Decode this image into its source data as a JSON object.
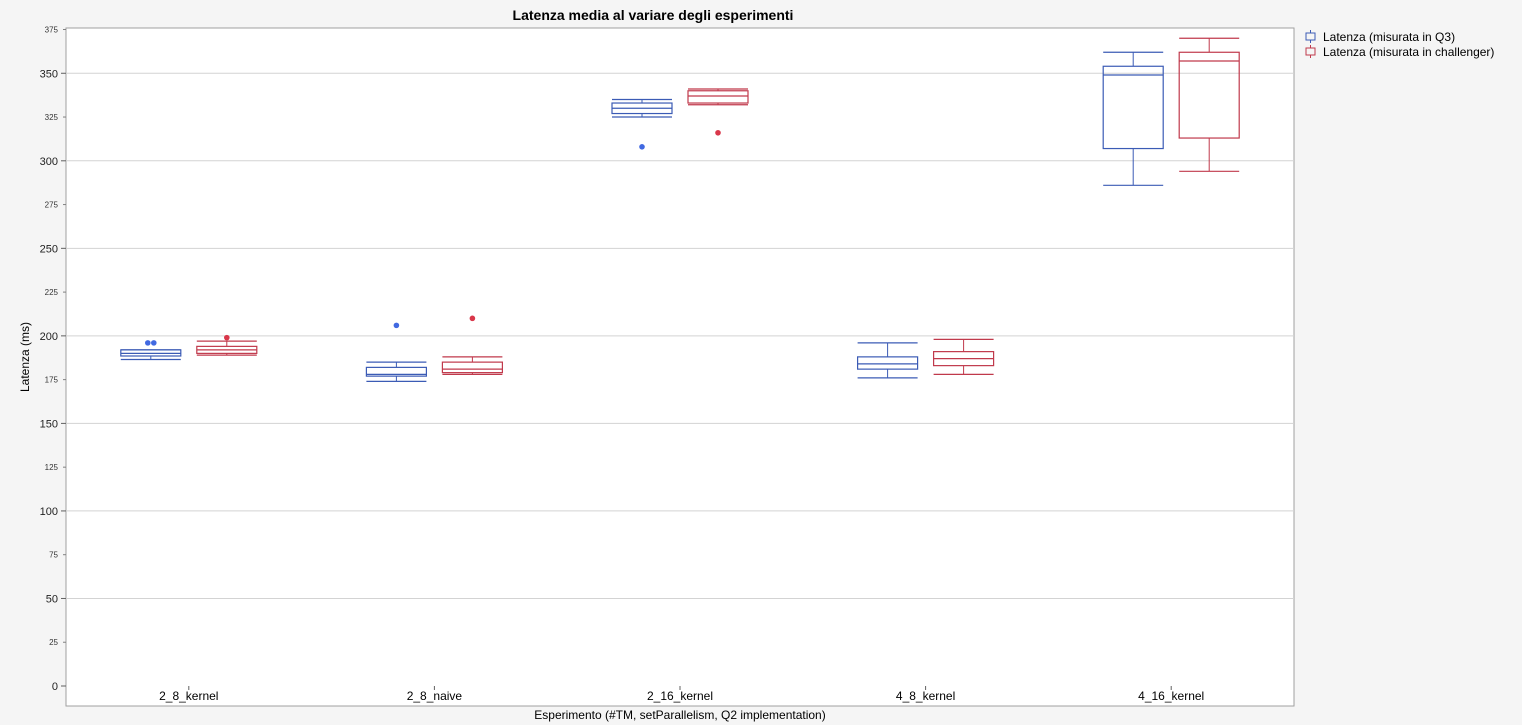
{
  "chart_data": {
    "type": "box",
    "title": "Latenza media al variare degli esperimenti",
    "xlabel": "Esperimento (#TM, setParallelism, Q2 implementation)",
    "ylabel": "Latenza (ms)",
    "ylim": [
      0,
      375
    ],
    "yticks_major": [
      0,
      50,
      100,
      150,
      200,
      250,
      300,
      350
    ],
    "yticks_minor": [
      25,
      75,
      125,
      175,
      225,
      275,
      325,
      375
    ],
    "grid": true,
    "legend_position": "top-right",
    "categories": [
      "2_8_kernel",
      "2_8_naive",
      "2_16_kernel",
      "4_8_kernel",
      "4_16_kernel"
    ],
    "series": [
      {
        "name": "Latenza (misurata in Q3)",
        "color": "#3b5bb5",
        "outlier_color": "#4169e1",
        "boxes": [
          {
            "min": 186.5,
            "q1": 188.5,
            "median": 190,
            "q3": 192,
            "max": 192,
            "outliers": [
              196,
              196
            ]
          },
          {
            "min": 174,
            "q1": 177,
            "median": 178,
            "q3": 182,
            "max": 185,
            "outliers": [
              206
            ]
          },
          {
            "min": 325,
            "q1": 327,
            "median": 330,
            "q3": 333,
            "max": 335,
            "outliers": [
              308
            ]
          },
          {
            "min": 176,
            "q1": 181,
            "median": 184,
            "q3": 188,
            "max": 196,
            "outliers": []
          },
          {
            "min": 286,
            "q1": 307,
            "median": 349,
            "q3": 354,
            "max": 362,
            "outliers": []
          }
        ]
      },
      {
        "name": "Latenza (misurata in challenger)",
        "color": "#c0394b",
        "outlier_color": "#d9374a",
        "boxes": [
          {
            "min": 189,
            "q1": 190,
            "median": 192,
            "q3": 194,
            "max": 197,
            "outliers": [
              199
            ]
          },
          {
            "min": 178,
            "q1": 179,
            "median": 181,
            "q3": 185,
            "max": 188,
            "outliers": [
              210
            ]
          },
          {
            "min": 332,
            "q1": 333,
            "median": 337,
            "q3": 340,
            "max": 341,
            "outliers": [
              316
            ]
          },
          {
            "min": 178,
            "q1": 183,
            "median": 187,
            "q3": 191,
            "max": 198,
            "outliers": []
          },
          {
            "min": 294,
            "q1": 313,
            "median": 357,
            "q3": 362,
            "max": 370,
            "outliers": []
          }
        ]
      }
    ]
  }
}
